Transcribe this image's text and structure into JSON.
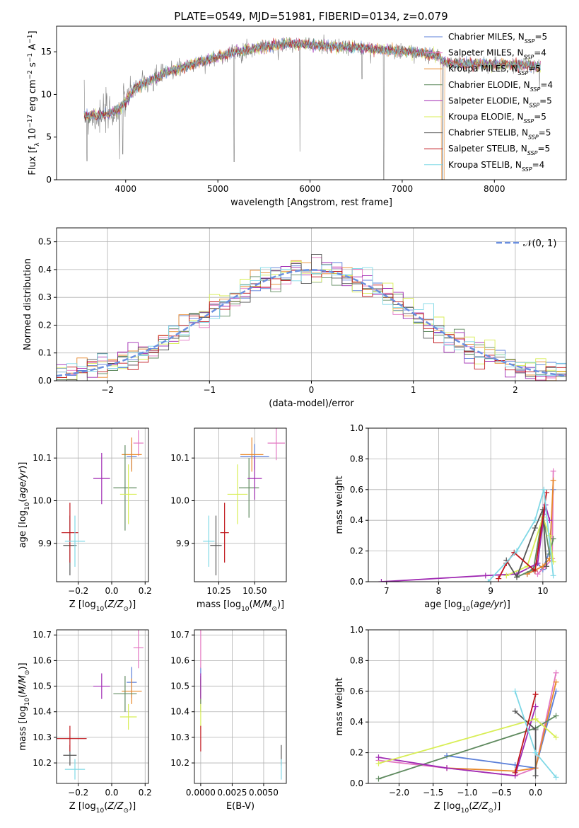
{
  "figure": {
    "title": "PLATE=0549, MJD=51981, FIBERID=0134, z=0.079"
  },
  "colors": {
    "Chabrier MILES": "#5b7fd9",
    "Salpeter MILES": "#e377c2",
    "Kroupa MILES": "#e8882a",
    "Chabrier ELODIE": "#5f8a5f",
    "Salpeter ELODIE": "#a02ab3",
    "Kroupa ELODIE": "#d8ee55",
    "Chabrier STELIB": "#555555",
    "Salpeter STELIB": "#c0161c",
    "Kroupa STELIB": "#7fd8e6",
    "spectrum": "#808080",
    "normal": "#6a8fe0"
  },
  "chart_data": [
    {
      "id": "spectrum",
      "type": "line",
      "xlabel": "wavelength [Angstrom, rest frame]",
      "ylabel": "Flux [f_λ 10^-17 erg cm^-2 s^-1 A^-1]",
      "xlim": [
        3250,
        8780
      ],
      "ylim": [
        0,
        18
      ],
      "xticks": [
        "4000",
        "5000",
        "6000",
        "7000",
        "8000"
      ],
      "yticks": [
        "0",
        "5",
        "10",
        "15"
      ],
      "grid": false,
      "legend_position": "right",
      "legend": [
        {
          "name": "Chabrier MILES",
          "nssp": "5"
        },
        {
          "name": "Salpeter MILES",
          "nssp": "4"
        },
        {
          "name": "Kroupa MILES",
          "nssp": "5"
        },
        {
          "name": "Chabrier ELODIE",
          "nssp": "4"
        },
        {
          "name": "Salpeter ELODIE",
          "nssp": "5"
        },
        {
          "name": "Kroupa ELODIE",
          "nssp": "5"
        },
        {
          "name": "Chabrier STELIB",
          "nssp": "5"
        },
        {
          "name": "Salpeter STELIB",
          "nssp": "5"
        },
        {
          "name": "Kroupa STELIB",
          "nssp": "4"
        }
      ],
      "continuum": [
        [
          3550,
          7.5
        ],
        [
          3700,
          7.5
        ],
        [
          3900,
          8.0
        ],
        [
          4000,
          9.2
        ],
        [
          4100,
          10.8
        ],
        [
          4300,
          11.8
        ],
        [
          4500,
          12.8
        ],
        [
          4800,
          13.8
        ],
        [
          5200,
          15.0
        ],
        [
          5500,
          15.6
        ],
        [
          5800,
          16.0
        ],
        [
          6000,
          15.8
        ],
        [
          6300,
          15.6
        ],
        [
          6600,
          15.4
        ],
        [
          6900,
          15.1
        ],
        [
          7200,
          14.9
        ],
        [
          7400,
          14.5
        ],
        [
          7450,
          13.8
        ],
        [
          7600,
          13.6
        ],
        [
          8000,
          13.5
        ],
        [
          8400,
          13.4
        ],
        [
          8500,
          13.2
        ]
      ],
      "absorption_lines": [
        [
          3580,
          2.2
        ],
        [
          3735,
          6.8
        ],
        [
          3934,
          2.4
        ],
        [
          3969,
          3.0
        ],
        [
          4102,
          9.8
        ],
        [
          4300,
          10.4
        ],
        [
          4862,
          12.4
        ],
        [
          5175,
          2.1
        ],
        [
          5270,
          13.9
        ],
        [
          5890,
          3.3
        ],
        [
          6563,
          11.8
        ],
        [
          6800,
          0.0
        ],
        [
          7440,
          0.0
        ],
        [
          8490,
          10.8
        ]
      ]
    },
    {
      "id": "residuals",
      "type": "line",
      "xlabel": "(data-model)/error",
      "ylabel": "Normed distribution",
      "xlim": [
        -2.5,
        2.5
      ],
      "ylim": [
        0,
        0.55
      ],
      "xticks": [
        "−2",
        "−1",
        "0",
        "1",
        "2"
      ],
      "yticks": [
        "0.0",
        "0.1",
        "0.2",
        "0.3",
        "0.4",
        "0.5"
      ],
      "grid": true,
      "legend_position": "top-right",
      "normal_label": "𝒩(0, 1)",
      "bin_width": 0.1
    },
    {
      "id": "age-vs-Z",
      "type": "scatter",
      "xlabel": "Z [log10(Z/Z☉)]",
      "ylabel": "age  [log10(age/yr)]",
      "xlim": [
        -0.33,
        0.22
      ],
      "ylim": [
        9.81,
        10.17
      ],
      "xticks": [
        "−0.2",
        "0.0",
        "0.2"
      ],
      "yticks": [
        "9.9",
        "10.0",
        "10.1"
      ],
      "grid": true,
      "points": [
        {
          "model": "Chabrier MILES",
          "x": 0.12,
          "y": 10.103,
          "xerr": 0.03,
          "yerr": 0.03
        },
        {
          "model": "Salpeter MILES",
          "x": 0.16,
          "y": 10.135,
          "xerr": 0.03,
          "yerr": 0.03
        },
        {
          "model": "Kroupa MILES",
          "x": 0.12,
          "y": 10.108,
          "xerr": 0.06,
          "yerr": 0.04
        },
        {
          "model": "Chabrier ELODIE",
          "x": 0.08,
          "y": 10.03,
          "xerr": 0.07,
          "yerr": 0.1
        },
        {
          "model": "Salpeter ELODIE",
          "x": -0.06,
          "y": 10.052,
          "xerr": 0.05,
          "yerr": 0.06
        },
        {
          "model": "Kroupa ELODIE",
          "x": 0.1,
          "y": 10.015,
          "xerr": 0.05,
          "yerr": 0.07
        },
        {
          "model": "Chabrier STELIB",
          "x": -0.25,
          "y": 9.895,
          "xerr": 0.04,
          "yerr": 0.07
        },
        {
          "model": "Salpeter STELIB",
          "x": -0.25,
          "y": 9.925,
          "xerr": 0.05,
          "yerr": 0.07
        },
        {
          "model": "Kroupa STELIB",
          "x": -0.22,
          "y": 9.905,
          "xerr": 0.06,
          "yerr": 0.06
        }
      ]
    },
    {
      "id": "age-vs-mass",
      "type": "scatter",
      "xlabel": "mass [log10(M/M☉)]",
      "ylabel": "",
      "xlim": [
        10.08,
        10.72
      ],
      "ylim": [
        9.81,
        10.17
      ],
      "xticks": [
        "10.25",
        "10.50"
      ],
      "yticks": [
        "9.9",
        "10.0",
        "10.1"
      ],
      "grid": true,
      "points": [
        {
          "model": "Chabrier MILES",
          "x": 10.5,
          "y": 10.103,
          "xerr": 0.1,
          "yerr": 0.03
        },
        {
          "model": "Salpeter MILES",
          "x": 10.65,
          "y": 10.135,
          "xerr": 0.06,
          "yerr": 0.04
        },
        {
          "model": "Kroupa MILES",
          "x": 10.48,
          "y": 10.108,
          "xerr": 0.08,
          "yerr": 0.04
        },
        {
          "model": "Chabrier ELODIE",
          "x": 10.46,
          "y": 10.03,
          "xerr": 0.07,
          "yerr": 0.07
        },
        {
          "model": "Salpeter ELODIE",
          "x": 10.5,
          "y": 10.052,
          "xerr": 0.05,
          "yerr": 0.05
        },
        {
          "model": "Kroupa ELODIE",
          "x": 10.38,
          "y": 10.015,
          "xerr": 0.07,
          "yerr": 0.07
        },
        {
          "model": "Chabrier STELIB",
          "x": 10.23,
          "y": 9.895,
          "xerr": 0.04,
          "yerr": 0.07
        },
        {
          "model": "Salpeter STELIB",
          "x": 10.29,
          "y": 9.925,
          "xerr": 0.03,
          "yerr": 0.07
        },
        {
          "model": "Kroupa STELIB",
          "x": 10.18,
          "y": 9.905,
          "xerr": 0.04,
          "yerr": 0.06
        }
      ]
    },
    {
      "id": "weight-vs-age",
      "type": "line",
      "xlabel": "age  [log10(age/yr)]",
      "ylabel": "mass weight",
      "xlim": [
        6.65,
        10.45
      ],
      "ylim": [
        0,
        1
      ],
      "xticks": [
        "7",
        "8",
        "9",
        "10"
      ],
      "yticks": [
        "0.0",
        "0.2",
        "0.4",
        "0.6",
        "0.8",
        "1.0"
      ],
      "grid": true,
      "series": [
        {
          "model": "Chabrier MILES",
          "x": [
            9.7,
            9.9,
            10.0,
            10.13,
            10.2
          ],
          "y": [
            0.05,
            0.12,
            0.08,
            0.2,
            0.6
          ]
        },
        {
          "model": "Salpeter MILES",
          "x": [
            9.9,
            10.05,
            10.18,
            10.2
          ],
          "y": [
            0.05,
            0.1,
            0.15,
            0.72
          ]
        },
        {
          "model": "Kroupa MILES",
          "x": [
            9.7,
            10.0,
            10.13,
            10.2
          ],
          "y": [
            0.05,
            0.1,
            0.15,
            0.66
          ]
        },
        {
          "model": "Chabrier ELODIE",
          "x": [
            9.5,
            9.82,
            10.0,
            10.13,
            10.2
          ],
          "y": [
            0.03,
            0.08,
            0.44,
            0.18,
            0.28
          ]
        },
        {
          "model": "Salpeter ELODIE",
          "x": [
            6.9,
            8.9,
            9.5,
            9.9,
            10.05,
            10.13
          ],
          "y": [
            0.0,
            0.04,
            0.05,
            0.12,
            0.5,
            0.4
          ]
        },
        {
          "model": "Kroupa ELODIE",
          "x": [
            9.3,
            9.7,
            10.0,
            10.13,
            10.2
          ],
          "y": [
            0.04,
            0.1,
            0.42,
            0.3,
            0.13
          ]
        },
        {
          "model": "Chabrier STELIB",
          "x": [
            9.3,
            9.5,
            9.85,
            10.0,
            10.07
          ],
          "y": [
            0.14,
            0.03,
            0.35,
            0.47,
            0.1
          ]
        },
        {
          "model": "Salpeter STELIB",
          "x": [
            9.15,
            9.3,
            9.45,
            9.85,
            10.07
          ],
          "y": [
            0.02,
            0.12,
            0.19,
            0.07,
            0.58
          ]
        },
        {
          "model": "Kroupa STELIB",
          "x": [
            8.95,
            9.5,
            9.85,
            10.02,
            10.2
          ],
          "y": [
            0.0,
            0.2,
            0.4,
            0.6,
            0.04
          ]
        }
      ]
    },
    {
      "id": "mass-vs-Z",
      "type": "scatter",
      "xlabel": "Z [log10(Z/Z☉)]",
      "ylabel": "mass [log10(M/M☉)]",
      "xlim": [
        -0.33,
        0.22
      ],
      "ylim": [
        10.12,
        10.72
      ],
      "xticks": [
        "−0.2",
        "0.0",
        "0.2"
      ],
      "yticks": [
        "10.2",
        "10.3",
        "10.4",
        "10.5",
        "10.6",
        "10.7"
      ],
      "grid": true,
      "points": [
        {
          "model": "Chabrier MILES",
          "x": 0.12,
          "y": 10.515,
          "xerr": 0.03,
          "yerr": 0.06
        },
        {
          "model": "Salpeter MILES",
          "x": 0.16,
          "y": 10.65,
          "xerr": 0.03,
          "yerr": 0.08
        },
        {
          "model": "Kroupa MILES",
          "x": 0.12,
          "y": 10.48,
          "xerr": 0.06,
          "yerr": 0.05
        },
        {
          "model": "Chabrier ELODIE",
          "x": 0.08,
          "y": 10.47,
          "xerr": 0.07,
          "yerr": 0.07
        },
        {
          "model": "Salpeter ELODIE",
          "x": -0.06,
          "y": 10.5,
          "xerr": 0.05,
          "yerr": 0.05
        },
        {
          "model": "Kroupa ELODIE",
          "x": 0.1,
          "y": 10.38,
          "xerr": 0.05,
          "yerr": 0.05
        },
        {
          "model": "Chabrier STELIB",
          "x": -0.25,
          "y": 10.23,
          "xerr": 0.04,
          "yerr": 0.04
        },
        {
          "model": "Salpeter STELIB",
          "x": -0.25,
          "y": 10.295,
          "xerr": 0.1,
          "yerr": 0.05
        },
        {
          "model": "Kroupa STELIB",
          "x": -0.22,
          "y": 10.175,
          "xerr": 0.06,
          "yerr": 0.04
        }
      ]
    },
    {
      "id": "mass-vs-ebv",
      "type": "scatter",
      "xlabel": "E(B-V)",
      "ylabel": "",
      "xlim": [
        -0.0005,
        0.0068
      ],
      "ylim": [
        10.12,
        10.72
      ],
      "xticks": [
        "0.0000",
        "0.0025",
        "0.0050"
      ],
      "yticks": [
        "10.2",
        "10.3",
        "10.4",
        "10.5",
        "10.6",
        "10.7"
      ],
      "grid": true,
      "points": [
        {
          "model": "Chabrier MILES",
          "x": 0.0,
          "y": 10.515,
          "xerr": 0,
          "yerr": 0.06
        },
        {
          "model": "Salpeter MILES",
          "x": 0.0,
          "y": 10.65,
          "xerr": 0,
          "yerr": 0.08
        },
        {
          "model": "Kroupa MILES",
          "x": 0.0,
          "y": 10.48,
          "xerr": 0,
          "yerr": 0.05
        },
        {
          "model": "Chabrier ELODIE",
          "x": 0.0,
          "y": 10.47,
          "xerr": 0,
          "yerr": 0.07
        },
        {
          "model": "Salpeter ELODIE",
          "x": 0.0,
          "y": 10.5,
          "xerr": 0,
          "yerr": 0.05
        },
        {
          "model": "Kroupa ELODIE",
          "x": 0.0,
          "y": 10.38,
          "xerr": 0,
          "yerr": 0.05
        },
        {
          "model": "Chabrier STELIB",
          "x": 0.0064,
          "y": 10.23,
          "xerr": 0,
          "yerr": 0.04
        },
        {
          "model": "Salpeter STELIB",
          "x": 0.0,
          "y": 10.295,
          "xerr": 0,
          "yerr": 0.05
        },
        {
          "model": "Kroupa STELIB",
          "x": 0.0064,
          "y": 10.175,
          "xerr": 0,
          "yerr": 0.04
        }
      ]
    },
    {
      "id": "weight-vs-Z",
      "type": "line",
      "xlabel": "Z [log10(Z/Z☉)]",
      "ylabel": "mass weight",
      "xlim": [
        -2.45,
        0.45
      ],
      "ylim": [
        0,
        1
      ],
      "xticks": [
        "−2.0",
        "−1.5",
        "−1.0",
        "−0.5",
        "0.0"
      ],
      "yticks": [
        "0.0",
        "0.2",
        "0.4",
        "0.6",
        "0.8",
        "1.0"
      ],
      "grid": true,
      "series": [
        {
          "model": "Chabrier MILES",
          "x": [
            -1.3,
            -0.3,
            0.0,
            0.3
          ],
          "y": [
            0.18,
            0.12,
            0.1,
            0.6
          ]
        },
        {
          "model": "Salpeter MILES",
          "x": [
            -2.3,
            -1.3,
            -0.3,
            0.0,
            0.3
          ],
          "y": [
            0.15,
            0.1,
            0.05,
            0.1,
            0.72
          ]
        },
        {
          "model": "Kroupa MILES",
          "x": [
            -1.3,
            -0.3,
            0.0,
            0.3
          ],
          "y": [
            0.1,
            0.08,
            0.1,
            0.66
          ]
        },
        {
          "model": "Chabrier ELODIE",
          "x": [
            -2.3,
            0.0,
            0.3
          ],
          "y": [
            0.03,
            0.36,
            0.44
          ]
        },
        {
          "model": "Salpeter ELODIE",
          "x": [
            -2.3,
            -1.3,
            -0.3,
            0.0
          ],
          "y": [
            0.17,
            0.1,
            0.05,
            0.5
          ]
        },
        {
          "model": "Kroupa ELODIE",
          "x": [
            -2.3,
            0.0,
            0.3
          ],
          "y": [
            0.13,
            0.42,
            0.3
          ]
        },
        {
          "model": "Chabrier STELIB",
          "x": [
            -0.3,
            0.0,
            0.0
          ],
          "y": [
            0.47,
            0.35,
            0.05
          ]
        },
        {
          "model": "Salpeter STELIB",
          "x": [
            -0.3,
            0.0
          ],
          "y": [
            0.07,
            0.58
          ]
        },
        {
          "model": "Kroupa STELIB",
          "x": [
            -0.3,
            0.0,
            0.3
          ],
          "y": [
            0.6,
            0.2,
            0.04
          ]
        }
      ]
    }
  ]
}
